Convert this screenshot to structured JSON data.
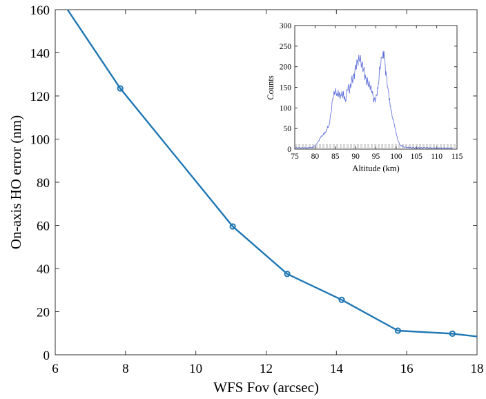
{
  "chart_data": [
    {
      "type": "line",
      "xlabel": "WFS Fov (arcsec)",
      "ylabel": "On-axis HO error (nm)",
      "xlim": [
        6,
        18
      ],
      "ylim": [
        0,
        160
      ],
      "xticks": [
        "6",
        "8",
        "10",
        "12",
        "14",
        "16",
        "18"
      ],
      "yticks": [
        "0",
        "20",
        "40",
        "60",
        "80",
        "100",
        "120",
        "140",
        "160"
      ],
      "grid": false,
      "color": "#1f77b4",
      "series": [
        {
          "x": [
            6.35,
            7.85,
            11.05,
            12.6,
            14.15,
            15.75,
            17.3,
            18.0
          ],
          "y": [
            160,
            123.5,
            59.5,
            37.5,
            25.5,
            11.2,
            9.8,
            8.5
          ],
          "marker_x": [
            7.85,
            11.05,
            12.6,
            14.15,
            15.75,
            17.3
          ],
          "marker_y": [
            123.5,
            59.5,
            37.5,
            25.5,
            11.2,
            9.8
          ]
        }
      ]
    },
    {
      "type": "line",
      "xlabel": "Altitude (km)",
      "ylabel": "Counts",
      "xlim": [
        75,
        115
      ],
      "ylim": [
        0,
        300
      ],
      "xticks": [
        "75",
        "80",
        "85",
        "90",
        "95",
        "100",
        "105",
        "110",
        "115"
      ],
      "yticks": [
        "0",
        "50",
        "100",
        "150",
        "200",
        "250",
        "300"
      ],
      "grid": false,
      "color": "#5a6bd8",
      "series": [
        {
          "x": [
            75,
            78,
            79.5,
            80.5,
            81.5,
            82.5,
            83.5,
            84,
            84.5,
            85,
            86,
            87,
            87.5,
            88,
            88.5,
            89,
            89.5,
            90,
            90.5,
            91,
            91.5,
            92,
            92.5,
            93,
            93.5,
            94,
            94.5,
            95,
            95.5,
            96,
            96.5,
            97,
            97.5,
            98,
            98.5,
            99,
            99.5,
            100,
            100.5,
            101,
            102,
            104,
            107,
            110,
            114
          ],
          "y": [
            3,
            3,
            4,
            14,
            30,
            40,
            60,
            95,
            130,
            138,
            130,
            134,
            118,
            150,
            140,
            165,
            175,
            200,
            212,
            218,
            205,
            195,
            172,
            162,
            152,
            140,
            118,
            125,
            150,
            195,
            220,
            230,
            185,
            150,
            110,
            80,
            60,
            38,
            20,
            10,
            5,
            3,
            3,
            2,
            2
          ],
          "reference_lines": [
            10,
            5
          ]
        }
      ]
    }
  ]
}
